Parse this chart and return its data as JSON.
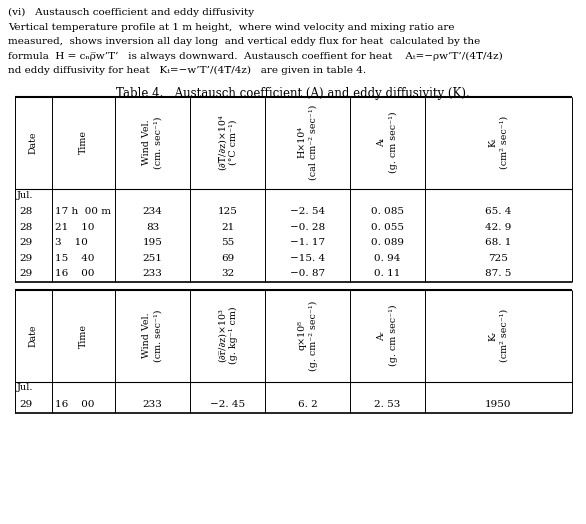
{
  "title": "Table 4.   Austausch coefficient (A) and eddy diffusivity (K).",
  "intro": [
    "(vi)   Austausch coefficient and eddy diffusivity",
    "Vertical temperature profile at 1 m height,  where wind velocity and mixing ratio are",
    "measured,  shows inversion all day long  and vertical eddy flux for heat  calculated by the",
    "formula  H = cₙρ̅w’T’   is always downward.  Austausch coeffient for heat    Aₜ= − ρw’T’/(4T̅/4z)",
    "nd eddy diffusivity for heat   Kₜ = − w’T’ / (4T̅/4z)   are given in table 4."
  ],
  "col_labels_1": [
    "Date",
    "Time",
    "Wind Vel.\n(cm. sec⁻¹)",
    "(∂T̅/∂z)×10⁴\n(°C cm⁻¹)",
    "H×10⁴\n(cal cm⁻² sec⁻¹)",
    "Aₜ\n(g. cm sec⁻¹)",
    "Kₜ\n(cm² sec⁻¹)"
  ],
  "rows_1": [
    [
      "Jul.",
      "",
      "",
      "",
      "",
      "",
      ""
    ],
    [
      "28",
      "17 h  00 m",
      "234",
      "125",
      "−2. 54",
      "0. 085",
      "65. 4"
    ],
    [
      "28",
      "21    10",
      "83",
      "21",
      "−0. 28",
      "0. 055",
      "42. 9"
    ],
    [
      "29",
      "3    10",
      "195",
      "55",
      "−1. 17",
      "0. 089",
      "68. 1"
    ],
    [
      "29",
      "15    40",
      "251",
      "69",
      "−15. 4",
      "0. 94",
      "725"
    ],
    [
      "29",
      "16    00",
      "233",
      "32",
      "−0. 87",
      "0. 11",
      "87. 5"
    ]
  ],
  "col_labels_2": [
    "Date",
    "Time",
    "Wind Vel.\n(cm. sec⁻¹)",
    "(∂r̅/∂z)×10³\n(g. kg⁻¹ cm)",
    "q×10⁸\n(g. cm⁻² sec⁻¹)",
    "Aᵣ\n(g. cm sec⁻¹)",
    "Kᵣ\n(cm² sec⁻¹)"
  ],
  "rows_2": [
    [
      "Jul.",
      "",
      "",
      "",
      "",
      "",
      ""
    ],
    [
      "29",
      "16    00",
      "233",
      "−2. 45",
      "6. 2",
      "2. 53",
      "1950"
    ]
  ],
  "bg": "#ffffff",
  "fg": "#000000"
}
